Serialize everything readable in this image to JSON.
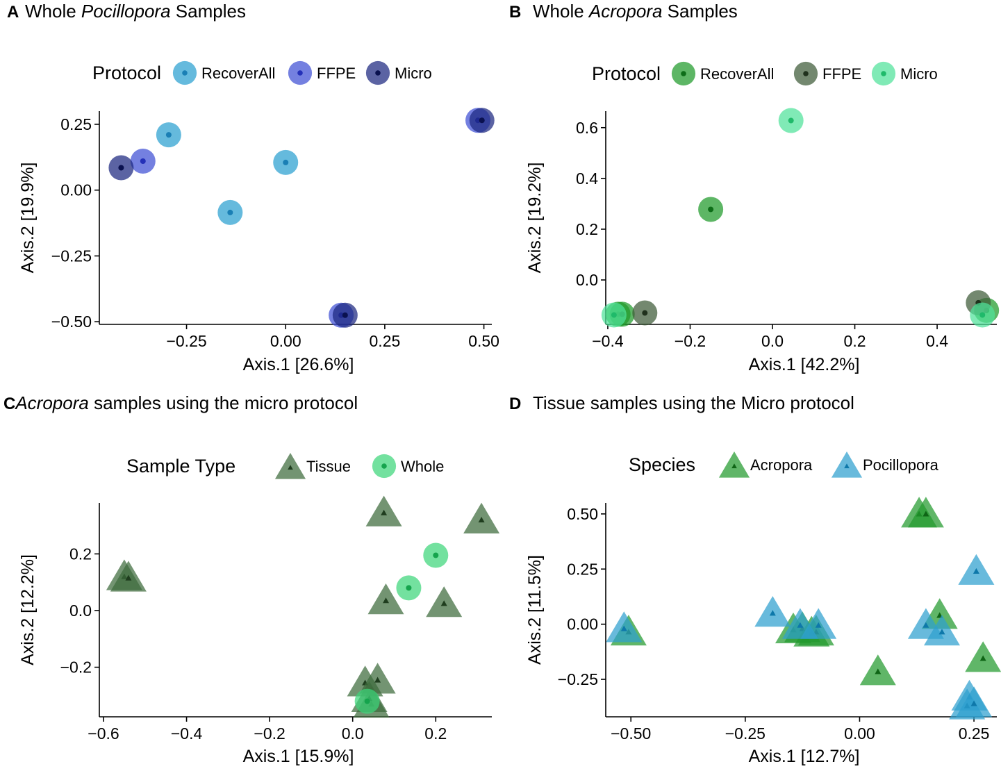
{
  "chart_data": [
    {
      "id": "A",
      "type": "scatter",
      "panel_label": "A",
      "title_prefix": "Whole ",
      "title_italic": "Pocillopora",
      "title_suffix": " Samples",
      "legend_title": "Protocol",
      "legend_position": "top",
      "xlabel": "Axis.1   [26.6%]",
      "ylabel": "Axis.2   [19.9%]",
      "xlim": [
        -0.47,
        0.52
      ],
      "ylim": [
        -0.51,
        0.3
      ],
      "xticks": [
        -0.25,
        0.0,
        0.25,
        0.5
      ],
      "xtick_labels": [
        "−0.25",
        "0.00",
        "0.25",
        "0.50"
      ],
      "yticks": [
        -0.5,
        -0.25,
        0.0,
        0.25
      ],
      "ytick_labels": [
        "−0.50",
        "−0.25",
        "0.00",
        "0.25"
      ],
      "series": [
        {
          "name": "RecoverAll",
          "color": "#2aa0d0",
          "dot": "#1a7fb5",
          "shape": "circle",
          "points": [
            [
              -0.295,
              0.21
            ],
            [
              -0.14,
              -0.085
            ],
            [
              0.0,
              0.105
            ]
          ]
        },
        {
          "name": "FFPE",
          "color": "#3f4fd4",
          "dot": "#2430b8",
          "shape": "circle",
          "points": [
            [
              -0.36,
              0.11
            ],
            [
              0.14,
              -0.475
            ],
            [
              0.485,
              0.265
            ]
          ]
        },
        {
          "name": "Micro",
          "color": "#1c2780",
          "dot": "#0a1150",
          "shape": "circle",
          "points": [
            [
              -0.415,
              0.085
            ],
            [
              0.15,
              -0.475
            ],
            [
              0.495,
              0.265
            ]
          ]
        }
      ]
    },
    {
      "id": "B",
      "type": "scatter",
      "panel_label": "B",
      "title_prefix": "Whole ",
      "title_italic": "Acropora",
      "title_suffix": " Samples",
      "legend_title": "Protocol",
      "legend_position": "top",
      "xlabel": "Axis.1   [42.2%]",
      "ylabel": "Axis.2   [19.2%]",
      "xlim": [
        -0.405,
        0.545
      ],
      "ylim": [
        -0.175,
        0.665
      ],
      "xticks": [
        -0.4,
        -0.2,
        0.0,
        0.2,
        0.4
      ],
      "xtick_labels": [
        "−0.4",
        "−0.2",
        "0.0",
        "0.2",
        "0.4"
      ],
      "yticks": [
        0.0,
        0.2,
        0.4,
        0.6
      ],
      "ytick_labels": [
        "0.0",
        "0.2",
        "0.4",
        "0.6"
      ],
      "series": [
        {
          "name": "RecoverAll",
          "color": "#1f9a2a",
          "dot": "#0d6e18",
          "shape": "circle",
          "points": [
            [
              -0.15,
              0.278
            ],
            [
              -0.375,
              -0.135
            ],
            [
              -0.365,
              -0.135
            ],
            [
              0.52,
              -0.12
            ]
          ]
        },
        {
          "name": "FFPE",
          "color": "#3d5a38",
          "dot": "#1f311c",
          "shape": "circle",
          "points": [
            [
              -0.31,
              -0.13
            ],
            [
              0.5,
              -0.09
            ]
          ]
        },
        {
          "name": "Micro",
          "color": "#4fe29a",
          "dot": "#1fba6a",
          "shape": "circle",
          "points": [
            [
              0.045,
              0.628
            ],
            [
              -0.385,
              -0.138
            ],
            [
              0.51,
              -0.138
            ]
          ]
        }
      ]
    },
    {
      "id": "C",
      "type": "scatter",
      "panel_label": "C",
      "title_prefix": "",
      "title_italic": "Acropora",
      "title_suffix": " samples using the micro protocol",
      "legend_title": "Sample Type",
      "legend_position": "top",
      "xlabel": "Axis.1   [15.9%]",
      "ylabel": "Axis.2   [12.2%]",
      "xlim": [
        -0.61,
        0.335
      ],
      "ylim": [
        -0.375,
        0.38
      ],
      "xticks": [
        -0.6,
        -0.4,
        -0.2,
        0.0,
        0.2
      ],
      "xtick_labels": [
        "−0.6",
        "−0.4",
        "−0.2",
        "0.0",
        "0.2"
      ],
      "yticks": [
        -0.2,
        0.0,
        0.2
      ],
      "ytick_labels": [
        "−0.2",
        "0.0",
        "0.2"
      ],
      "series": [
        {
          "name": "Tissue",
          "color": "#3d6b3c",
          "dot": "#1f3d1e",
          "shape": "triangle",
          "points": [
            [
              -0.55,
              0.12
            ],
            [
              -0.54,
              0.115
            ],
            [
              0.075,
              0.345
            ],
            [
              0.31,
              0.32
            ],
            [
              0.08,
              0.035
            ],
            [
              0.22,
              0.025
            ],
            [
              0.03,
              -0.255
            ],
            [
              0.06,
              -0.245
            ],
            [
              0.045,
              -0.33
            ],
            [
              0.04,
              -0.31
            ]
          ]
        },
        {
          "name": "Whole",
          "color": "#3dd57a",
          "dot": "#15a44d",
          "shape": "circle",
          "points": [
            [
              0.2,
              0.195
            ],
            [
              0.135,
              0.08
            ],
            [
              0.035,
              -0.32
            ]
          ]
        }
      ]
    },
    {
      "id": "D",
      "type": "scatter",
      "panel_label": "D",
      "title_prefix": "Tissue samples using the Micro protocol",
      "title_italic": "",
      "title_suffix": "",
      "legend_title": "Species",
      "legend_position": "top",
      "xlabel": "Axis.1   [12.7%]",
      "ylabel": "Axis.2   [11.5%]",
      "xlim": [
        -0.555,
        0.3
      ],
      "ylim": [
        -0.42,
        0.55
      ],
      "xticks": [
        -0.5,
        -0.25,
        0.0,
        0.25
      ],
      "xtick_labels": [
        "−0.50",
        "−0.25",
        "0.00",
        "0.25"
      ],
      "yticks": [
        -0.25,
        0.0,
        0.25,
        0.5
      ],
      "ytick_labels": [
        "−0.25",
        "0.00",
        "0.25",
        "0.50"
      ],
      "series": [
        {
          "name": "Acropora",
          "color": "#239a2e",
          "dot": "#0f6516",
          "shape": "triangle",
          "points": [
            [
              -0.505,
              -0.035
            ],
            [
              -0.145,
              -0.025
            ],
            [
              -0.125,
              -0.02
            ],
            [
              -0.105,
              -0.04
            ],
            [
              -0.095,
              -0.035
            ],
            [
              0.04,
              -0.215
            ],
            [
              0.13,
              0.5
            ],
            [
              0.145,
              0.5
            ],
            [
              0.175,
              0.04
            ],
            [
              0.27,
              -0.155
            ]
          ]
        },
        {
          "name": "Pocillopora",
          "color": "#2e9fcf",
          "dot": "#0e78aa",
          "shape": "triangle",
          "points": [
            [
              -0.515,
              -0.02
            ],
            [
              -0.19,
              0.05
            ],
            [
              -0.13,
              -0.005
            ],
            [
              -0.09,
              -0.005
            ],
            [
              0.145,
              -0.005
            ],
            [
              0.18,
              -0.035
            ],
            [
              0.255,
              0.24
            ],
            [
              0.24,
              -0.33
            ],
            [
              0.235,
              -0.37
            ],
            [
              0.25,
              -0.36
            ]
          ]
        }
      ]
    }
  ]
}
